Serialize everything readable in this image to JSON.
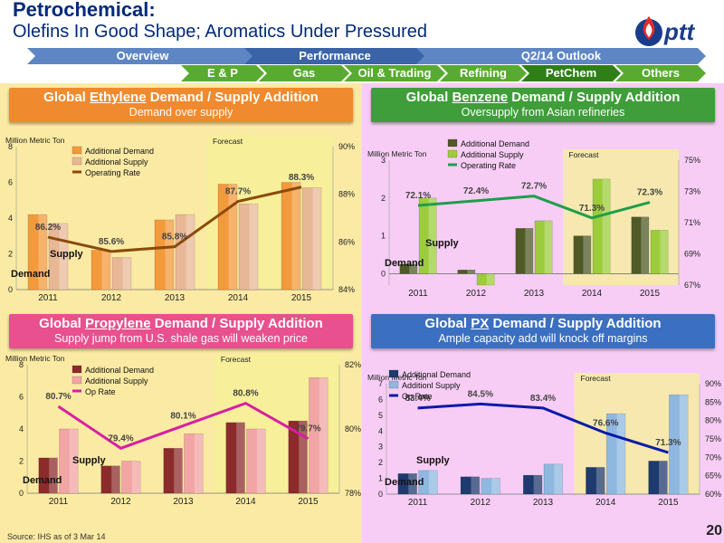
{
  "header": {
    "title": "Petrochemical:",
    "subtitle": "Olefins In Good Shape; Aromatics Under Pressured",
    "logo_text": "ptt"
  },
  "nav": {
    "row1": [
      "Overview",
      "Performance",
      "Q2/14 Outlook"
    ],
    "row2": [
      "E & P",
      "Gas",
      "Oil & Trading",
      "Refining",
      "PetChem",
      "Others"
    ],
    "colors": {
      "row1": "#5f86c4",
      "row1_active": "#3a63a8",
      "row2": "#58ab30",
      "row2_active": "#2e7f16"
    }
  },
  "footer": {
    "source": "Source: IHS as of 3 Mar 14",
    "page": "20"
  },
  "chart_data": [
    {
      "id": "ethylene",
      "type": "bar",
      "title": "Global Ethylene Demand / Supply Addition",
      "title_prefix": "Global ",
      "title_key": "Ethylene",
      "title_suffix": " Demand / Supply Addition",
      "subtitle": "Demand over supply",
      "banner_color": "#f08a2e",
      "bg": "#fbeaa3",
      "ylabel": "Million Metric Ton",
      "forecast_label": "Forecast",
      "categories": [
        "2011",
        "2012",
        "2013",
        "2014",
        "2015"
      ],
      "ylim": [
        0,
        8
      ],
      "yticks": [
        "0",
        "2",
        "4",
        "6",
        "8"
      ],
      "y2lim": [
        84,
        90
      ],
      "y2ticks": [
        "84%",
        "86%",
        "88%",
        "90%"
      ],
      "series": [
        {
          "name": "Additional Demand",
          "values": [
            4.2,
            2.2,
            3.9,
            5.9,
            6.0
          ],
          "color": "#f39a3c"
        },
        {
          "name": "Additional Supply",
          "values": [
            3.7,
            1.8,
            4.2,
            4.8,
            5.7
          ],
          "color": "#e8b896"
        }
      ],
      "line": {
        "name": "Operating Rate",
        "values": [
          86.2,
          85.6,
          85.8,
          87.7,
          88.3
        ],
        "labels": [
          "86.2%",
          "85.6%",
          "85.8%",
          "87.7%",
          "88.3%"
        ],
        "color": "#8b4a0c"
      },
      "annotations": {
        "supply": "Supply",
        "demand": "Demand"
      }
    },
    {
      "id": "benzene",
      "type": "bar",
      "title": "Global Benzene Demand / Supply Addition",
      "title_prefix": "Global ",
      "title_key": "Benzene",
      "title_suffix": " Demand / Supply Addition",
      "subtitle": "Oversupply from Asian refineries",
      "banner_color": "#3f9d3a",
      "bg": "#f7cdf5",
      "ylabel": "Million Metric Ton",
      "forecast_label": "Forecast",
      "categories": [
        "2011",
        "2012",
        "2013",
        "2014",
        "2015"
      ],
      "ylim": [
        -0.3,
        3
      ],
      "yticks": [
        "0",
        "1",
        "2",
        "3"
      ],
      "y2lim": [
        67,
        75
      ],
      "y2ticks": [
        "67%",
        "69%",
        "71%",
        "73%",
        "75%"
      ],
      "series": [
        {
          "name": "Additional Demand",
          "values": [
            0.25,
            0.1,
            1.2,
            1.0,
            1.5
          ],
          "color": "#4f5a26"
        },
        {
          "name": "Additional Supply",
          "values": [
            2.0,
            -0.3,
            1.4,
            2.5,
            1.15
          ],
          "color": "#9ccc3c"
        }
      ],
      "line": {
        "name": "Operating Rate",
        "values": [
          72.1,
          72.4,
          72.7,
          71.3,
          72.3
        ],
        "labels": [
          "72.1%",
          "72.4%",
          "72.7%",
          "71.3%",
          "72.3%"
        ],
        "color": "#1f9e4a"
      },
      "annotations": {
        "supply": "Supply",
        "demand": "Demand"
      }
    },
    {
      "id": "propylene",
      "type": "bar",
      "title": "Global Propylene Demand / Supply Addition",
      "title_prefix": "Global ",
      "title_key": "Propylene",
      "title_suffix": " Demand / Supply Addition",
      "subtitle": "Supply jump from U.S. shale gas will weaken price",
      "banner_color": "#e8508f",
      "bg": "#fbeaa3",
      "ylabel": "Million Metric Ton",
      "forecast_label": "Forecast",
      "categories": [
        "2011",
        "2012",
        "2013",
        "2014",
        "2015"
      ],
      "ylim": [
        0,
        8
      ],
      "yticks": [
        "0",
        "2",
        "4",
        "6",
        "8"
      ],
      "y2lim": [
        78,
        82
      ],
      "y2ticks": [
        "78%",
        "80%",
        "82%"
      ],
      "series": [
        {
          "name": "Additional Demand",
          "values": [
            2.2,
            1.7,
            2.8,
            4.4,
            4.5
          ],
          "color": "#8c2b2b"
        },
        {
          "name": "Additional Supply",
          "values": [
            4.0,
            2.0,
            3.7,
            4.0,
            7.2
          ],
          "color": "#f2a5a5"
        }
      ],
      "line": {
        "name": "Op Rate",
        "values": [
          80.7,
          79.4,
          80.1,
          80.8,
          79.7
        ],
        "labels": [
          "80.7%",
          "79.4%",
          "80.1%",
          "80.8%",
          "79.7%"
        ],
        "color": "#d81ea3"
      },
      "annotations": {
        "supply": "Supply",
        "demand": "Demand"
      }
    },
    {
      "id": "px",
      "type": "bar",
      "title": "Global PX Demand / Supply Addition",
      "title_prefix": "Global ",
      "title_key": "PX",
      "title_suffix": " Demand / Supply Addition",
      "subtitle": "Ample capacity add will knock off margins",
      "banner_color": "#3b6fc2",
      "bg": "#f7cdf5",
      "ylabel": "Million Metric Ton",
      "forecast_label": "Forecast",
      "categories": [
        "2011",
        "2012",
        "2013",
        "2014",
        "2015"
      ],
      "ylim": [
        0,
        7
      ],
      "yticks": [
        "0",
        "1",
        "2",
        "3",
        "4",
        "5",
        "6",
        "7"
      ],
      "y2lim": [
        60,
        90
      ],
      "y2ticks": [
        "60%",
        "65%",
        "70%",
        "75%",
        "80%",
        "85%",
        "90%"
      ],
      "series": [
        {
          "name": "Additional Demand",
          "values": [
            1.3,
            1.1,
            1.2,
            1.7,
            2.1
          ],
          "color": "#1f3a6e"
        },
        {
          "name": "Additionl Supply",
          "values": [
            1.5,
            1.0,
            1.9,
            5.1,
            6.3
          ],
          "color": "#8fb8e0"
        }
      ],
      "line": {
        "name": "Op Rate",
        "values": [
          83.4,
          84.5,
          83.4,
          76.6,
          71.3
        ],
        "labels": [
          "83.4%",
          "84.5%",
          "83.4%",
          "76.6%",
          "71.3%"
        ],
        "color": "#0b1aa8"
      },
      "annotations": {
        "supply": "Supply",
        "demand": "Demand"
      }
    }
  ]
}
